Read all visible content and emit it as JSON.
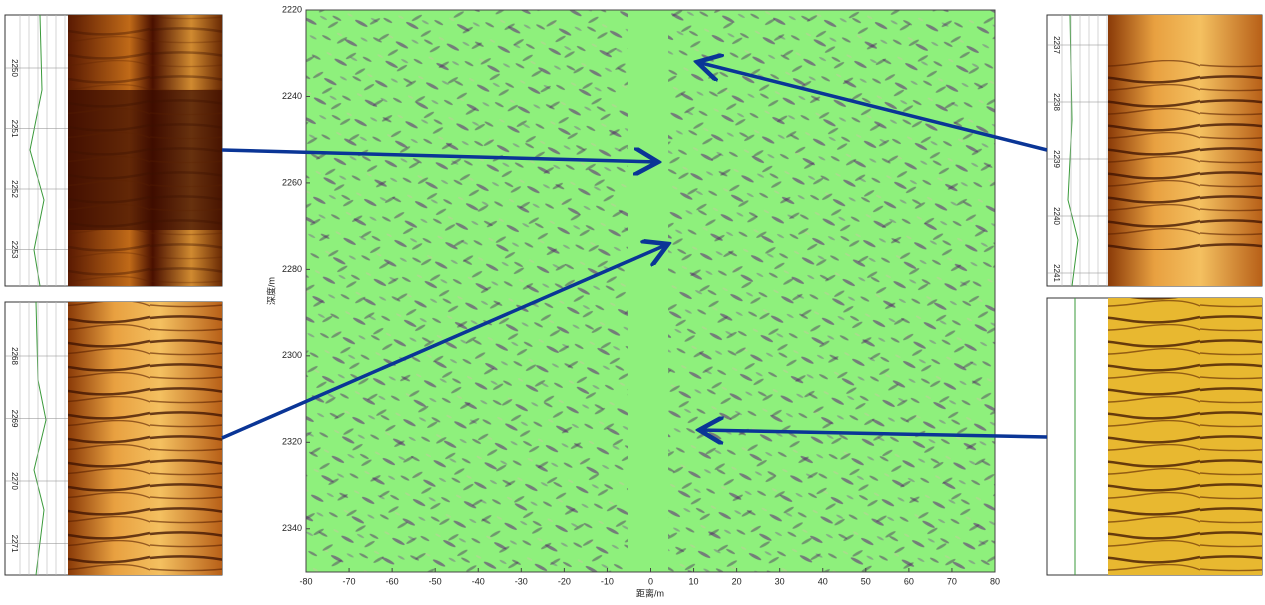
{
  "section": {
    "x_label": "距离/m",
    "y_label": "深度/m",
    "xlim": [
      -80,
      80
    ],
    "ylim": [
      2220,
      2350
    ],
    "xticks": [
      -80,
      -70,
      -60,
      -50,
      -40,
      -30,
      -20,
      -10,
      0,
      10,
      20,
      30,
      40,
      50,
      60,
      70,
      80
    ],
    "yticks": [
      2220,
      2240,
      2260,
      2280,
      2300,
      2320,
      2340
    ]
  },
  "panels": [
    {
      "depths": [
        2250,
        2251,
        2252,
        2253
      ]
    },
    {
      "depths": [
        2268,
        2269,
        2270,
        2271
      ]
    },
    {
      "depths": [
        2237,
        2238,
        2239,
        2240,
        2241
      ]
    }
  ]
}
